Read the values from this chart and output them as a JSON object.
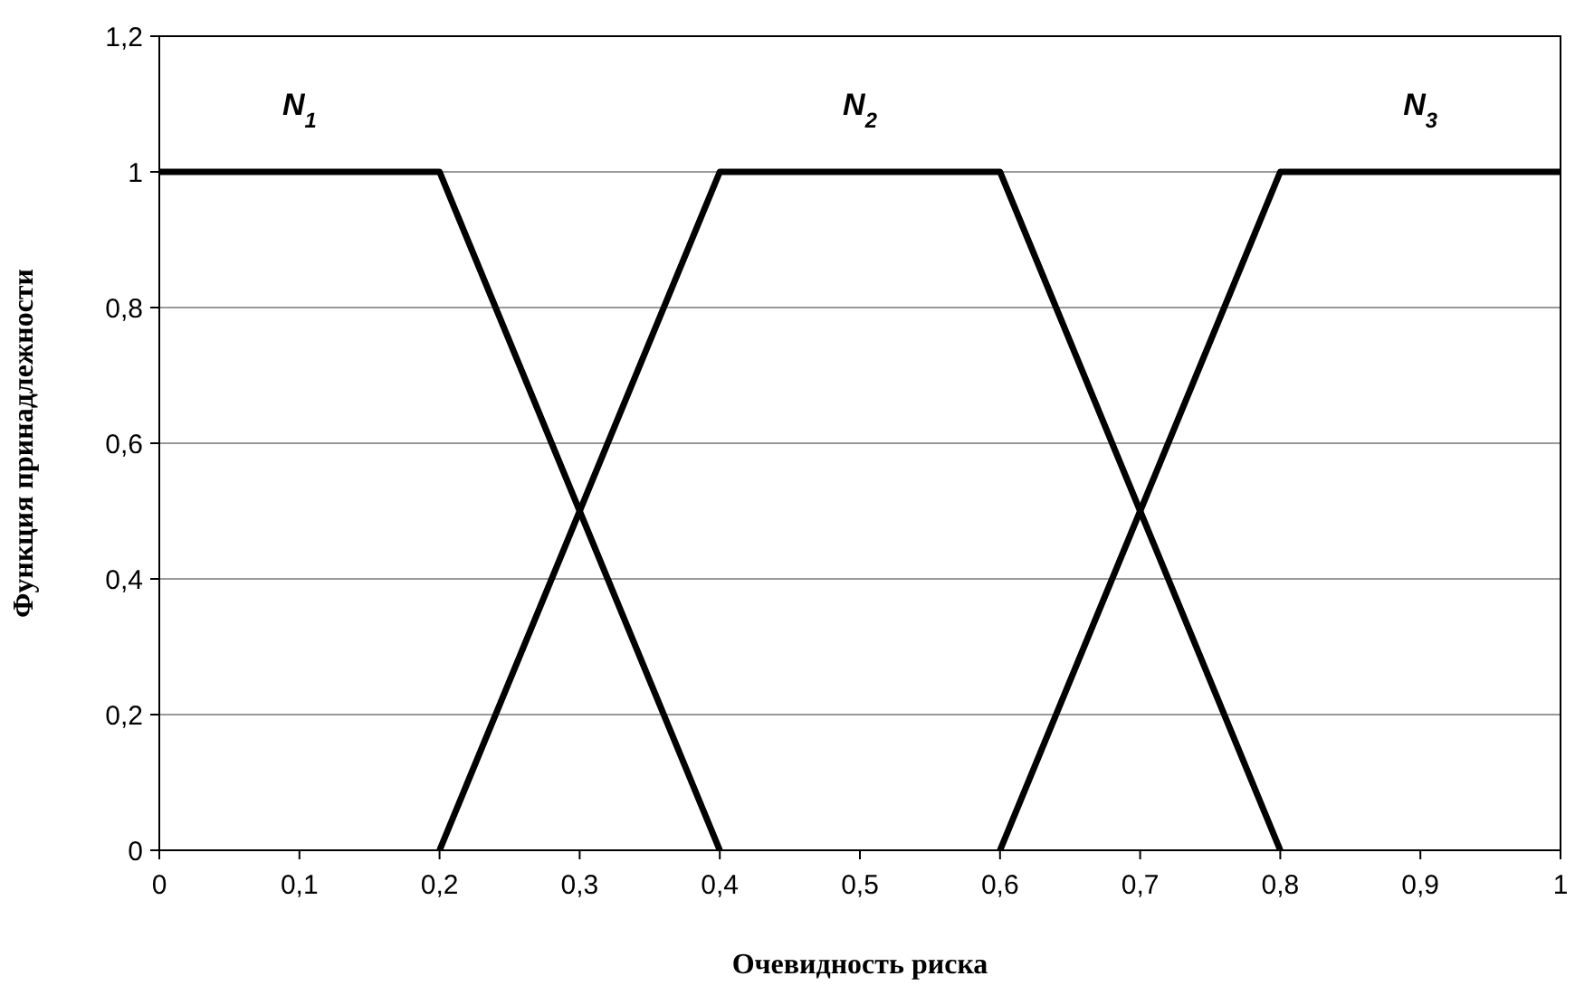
{
  "chart_data": {
    "type": "line",
    "xlabel": "Очевидность риска",
    "ylabel": "Функция принадлежности",
    "series": [
      {
        "name": "N$_{1}$",
        "color": "#000000",
        "x": [
          0,
          0.2,
          0.4
        ],
        "values": [
          1,
          1,
          0
        ]
      },
      {
        "name": "N$_{2}$",
        "color": "#000000",
        "x": [
          0.2,
          0.4,
          0.6,
          0.8
        ],
        "values": [
          0,
          1,
          1,
          0
        ]
      },
      {
        "name": "N$_{3}$",
        "color": "#000000",
        "x": [
          0.6,
          0.8,
          1
        ],
        "values": [
          0,
          1,
          1
        ]
      }
    ],
    "xlim": [
      0,
      1
    ],
    "ylim": [
      0,
      1.2
    ],
    "xticks": [
      0,
      {
        "value": 0.1,
        "label": "0,1"
      },
      {
        "value": 0.2,
        "label": "0,2"
      },
      {
        "value": 0.3,
        "label": "0,3"
      },
      {
        "value": 0.4,
        "label": "0,4"
      },
      {
        "value": 0.5,
        "label": "0,5"
      },
      {
        "value": 0.6,
        "label": "0,6"
      },
      {
        "value": 0.7,
        "label": "0,7"
      },
      {
        "value": 0.8,
        "label": "0,8"
      },
      {
        "value": 0.9,
        "label": "0,9"
      },
      1
    ],
    "yticks": [
      0,
      {
        "value": 0.2,
        "label": "0,2"
      },
      {
        "value": 0.4,
        "label": "0,4"
      },
      {
        "value": 0.6,
        "label": "0,6"
      },
      {
        "value": 0.8,
        "label": "0,8"
      },
      1,
      {
        "value": 1.2,
        "label": "1,2"
      }
    ],
    "grid": "y",
    "marker": "none",
    "line_style": "solid"
  }
}
